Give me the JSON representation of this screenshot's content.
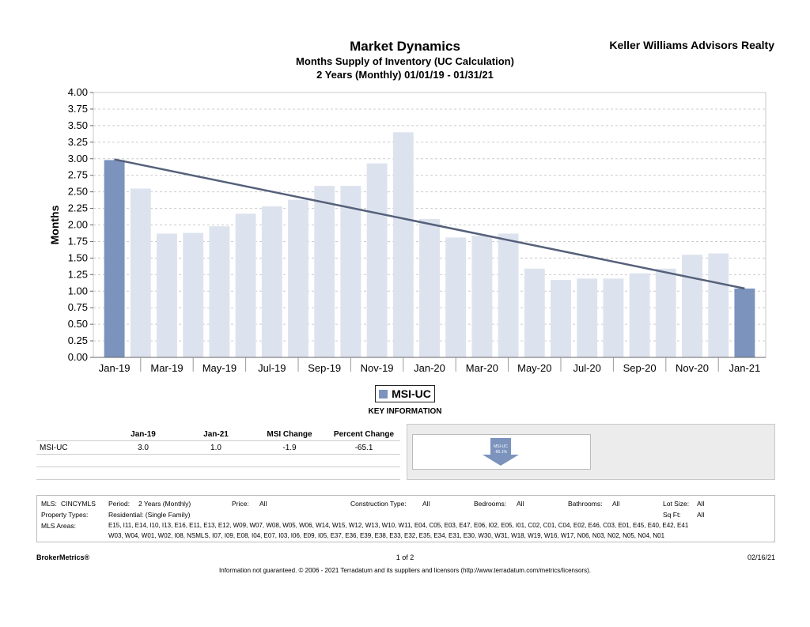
{
  "header": {
    "title": "Market Dynamics",
    "subtitle": "Months Supply of Inventory (UC Calculation)",
    "subtitle2": "2 Years (Monthly) 01/01/19 - 01/31/21",
    "company": "Keller Williams Advisors Realty"
  },
  "chart_data": {
    "type": "bar",
    "ylabel": "Months",
    "ylim": [
      0,
      4
    ],
    "yticks": [
      "0.00",
      "0.25",
      "0.50",
      "0.75",
      "1.00",
      "1.25",
      "1.50",
      "1.75",
      "2.00",
      "2.25",
      "2.50",
      "2.75",
      "3.00",
      "3.25",
      "3.50",
      "3.75",
      "4.00"
    ],
    "x_tick_labels": [
      "Jan-19",
      "Mar-19",
      "May-19",
      "Jul-19",
      "Sep-19",
      "Nov-19",
      "Jan-20",
      "Mar-20",
      "May-20",
      "Jul-20",
      "Sep-20",
      "Nov-20",
      "Jan-21"
    ],
    "categories": [
      "Jan-19",
      "Feb-19",
      "Mar-19",
      "Apr-19",
      "May-19",
      "Jun-19",
      "Jul-19",
      "Aug-19",
      "Sep-19",
      "Oct-19",
      "Nov-19",
      "Dec-19",
      "Jan-20",
      "Feb-20",
      "Mar-20",
      "Apr-20",
      "May-20",
      "Jun-20",
      "Jul-20",
      "Aug-20",
      "Sep-20",
      "Oct-20",
      "Nov-20",
      "Dec-20",
      "Jan-21"
    ],
    "values": [
      2.98,
      2.55,
      1.87,
      1.88,
      1.98,
      2.17,
      2.28,
      2.38,
      2.59,
      2.59,
      2.93,
      3.4,
      2.09,
      1.81,
      1.84,
      1.87,
      1.34,
      1.17,
      1.19,
      1.19,
      1.27,
      1.34,
      1.55,
      1.57,
      1.04
    ],
    "highlight": [
      0,
      24
    ],
    "trendline": {
      "start": 2.99,
      "end": 1.04
    },
    "grid": true,
    "legend": "bottom-center",
    "colors": {
      "highlight": "#7b93bd",
      "bar": "#dde3ee",
      "trend": "#55607a"
    }
  },
  "legend": {
    "label": "MSI-UC"
  },
  "key_info": "KEY INFORMATION",
  "stats": {
    "headers": [
      "Jan-19",
      "Jan-21",
      "MSI Change",
      "Percent Change"
    ],
    "row_label": "MSI-UC",
    "values": [
      "3.0",
      "1.0",
      "-1.9",
      "-65.1"
    ]
  },
  "change_indicator": {
    "label": "MSI-UC",
    "value": "-65.1%",
    "direction": "down",
    "color": "#7b93bd"
  },
  "info": {
    "mls_label": "MLS:",
    "mls_value": "CINCYMLS",
    "period_label": "Period:",
    "period_value": "2 Years (Monthly)",
    "price_label": "Price:",
    "price_value": "All",
    "construction_label": "Construction Type:",
    "construction_value": "All",
    "bedrooms_label": "Bedrooms:",
    "bedrooms_value": "All",
    "bathrooms_label": "Bathrooms:",
    "bathrooms_value": "All",
    "lot_label": "Lot Size:",
    "lot_value": "All",
    "sqft_label": "Sq Ft:",
    "sqft_value": "All",
    "ptype_label": "Property Types:",
    "ptype_value": "Residential: (Single Family)",
    "areas_label": "MLS Areas:",
    "areas_line1": "E15, I11, E14, I10, I13, E16, E11, E13, E12, W09, W07, W08, W05, W06, W14, W15, W12, W13, W10, W11, E04, C05, E03, E47, E06, I02, E05, I01, C02, C01, C04, E02, E46, C03, E01, E45, E40, E42, E41",
    "areas_line2": "W03, W04, W01, W02, I08, NSMLS, I07, I09, E08, I04, E07, I03, I06, E09, I05, E37, E36, E39, E38, E33, E32, E35, E34, E31, E30, W30, W31, W18, W19, W16, W17, N06, N03, N02, N05, N04, N01"
  },
  "footer": {
    "brand": "BrokerMetrics®",
    "page": "1 of 2",
    "date": "02/16/21",
    "note": "Information not guaranteed.  © 2006 - 2021 Terradatum and its suppliers and licensors (http://www.terradatum.com/metrics/licensors)."
  }
}
